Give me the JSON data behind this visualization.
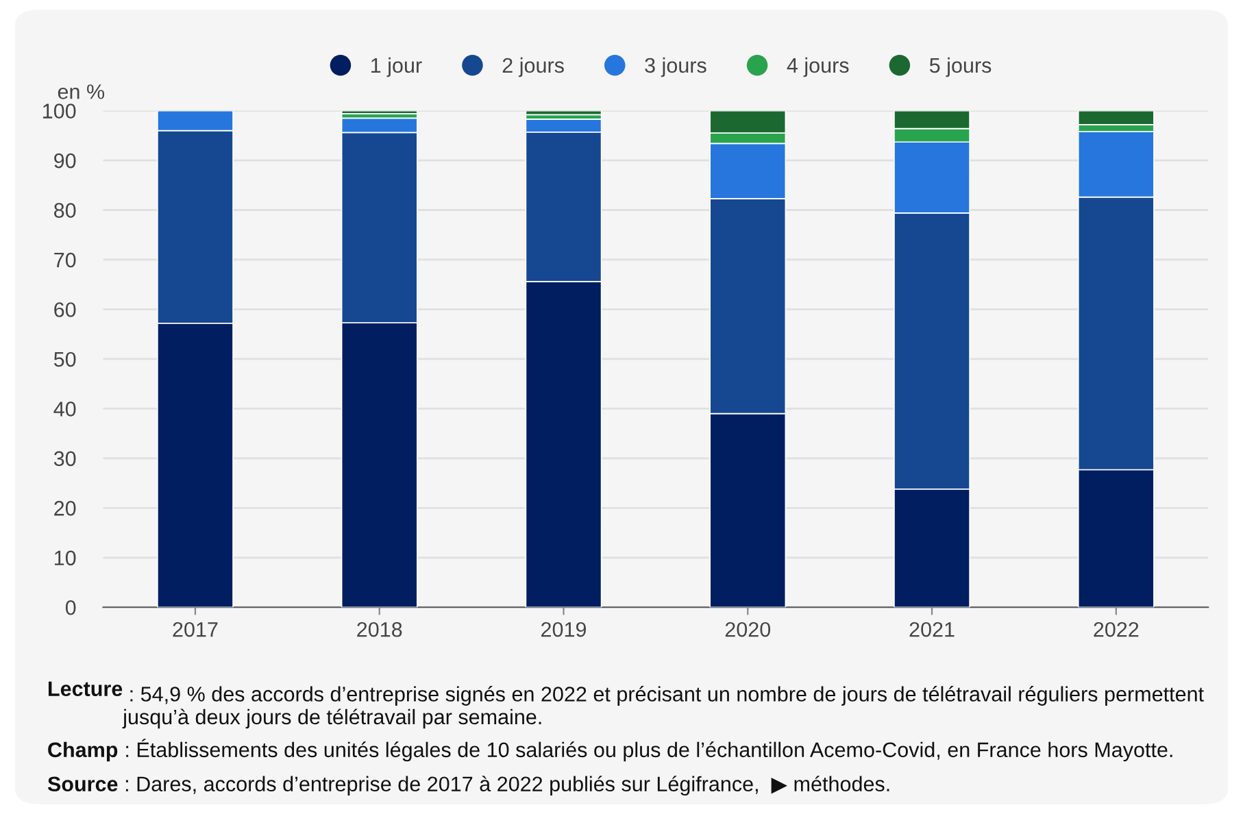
{
  "chart_data": {
    "type": "bar",
    "stacked": true,
    "ylabel": "en %",
    "categories": [
      "2017",
      "2018",
      "2019",
      "2020",
      "2021",
      "2022"
    ],
    "series": [
      {
        "name": "1 jour",
        "color": "#001e60",
        "values": [
          57.2,
          57.3,
          65.6,
          39.0,
          23.8,
          27.7
        ]
      },
      {
        "name": "2 jours",
        "color": "#164891",
        "values": [
          38.8,
          38.3,
          30.1,
          43.3,
          55.6,
          54.9
        ]
      },
      {
        "name": "3 jours",
        "color": "#2676dd",
        "values": [
          4.0,
          2.9,
          2.6,
          11.1,
          14.3,
          13.2
        ]
      },
      {
        "name": "4 jours",
        "color": "#2aa34f",
        "values": [
          null,
          0.9,
          0.9,
          2.1,
          2.7,
          1.4
        ]
      },
      {
        "name": "5 jours",
        "color": "#1b6930",
        "values": [
          null,
          0.6,
          0.8,
          4.5,
          3.6,
          2.8
        ]
      }
    ],
    "ylim": [
      0,
      100
    ],
    "yticks": [
      0,
      10,
      20,
      30,
      40,
      50,
      60,
      70,
      80,
      90,
      100
    ],
    "grid": "y",
    "legend": "top",
    "annotations": [
      "Lecture : 54,9 % des accords d’entreprise signés en 2022 et précisant un nombre de jours de télétravail réguliers permettent jusqu’à deux jours de télétravail par semaine.",
      "Champ : Établissements des unités légales de 10 salariés ou plus de l’échantillon Acemo-Covid, en France hors Mayotte.",
      "Source : Dares, accords d’entreprise de 2017 à 2022 publiés sur Légifrance,  ▶ méthodes."
    ]
  }
}
